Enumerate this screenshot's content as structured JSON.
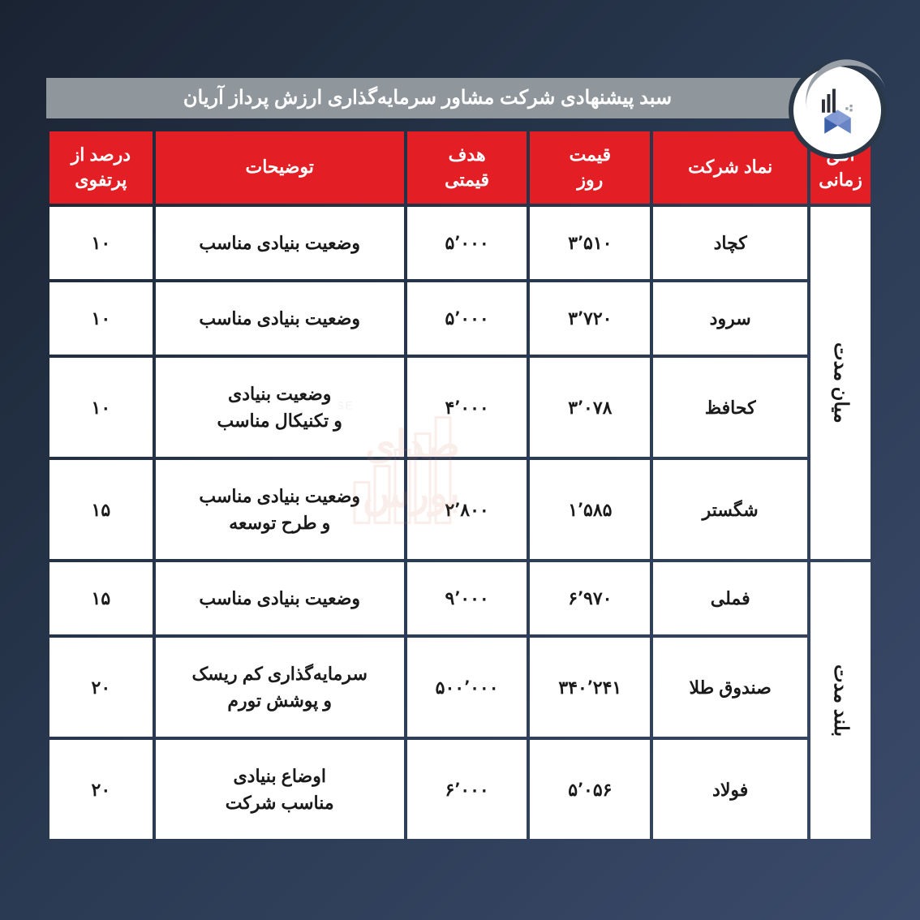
{
  "title": "سبد پیشنهادی شرکت مشاور سرمایه‌گذاری ارزش پرداز آریان",
  "colors": {
    "header_bg": "#e31e24",
    "header_text": "#ffffff",
    "title_bar_bg": "#8f969c",
    "cell_bg": "#ffffff",
    "cell_text": "#1a1a1a",
    "page_bg_start": "#1a2332",
    "page_bg_end": "#3a4a6a",
    "logo_blue": "#3b5fa8",
    "logo_dark": "#2a2f38",
    "watermark": "#d97a5a"
  },
  "columns": {
    "horizon": "افق\nزمانی",
    "symbol": "نماد شرکت",
    "day_price": "قیمت\nروز",
    "target_price": "هدف\nقیمتی",
    "desc": "توضیحات",
    "pct": "درصد از\nپرتفوی"
  },
  "groups": [
    {
      "horizon": "میان مدت",
      "rows": [
        {
          "symbol": "کچاد",
          "day_price": "۳٬۵۱۰",
          "target_price": "۵٬۰۰۰",
          "desc": "وضعیت بنیادی مناسب",
          "pct": "۱۰"
        },
        {
          "symbol": "سرود",
          "day_price": "۳٬۷۲۰",
          "target_price": "۵٬۰۰۰",
          "desc": "وضعیت بنیادی مناسب",
          "pct": "۱۰"
        },
        {
          "symbol": "کحافظ",
          "day_price": "۳٬۰۷۸",
          "target_price": "۴٬۰۰۰",
          "desc": "وضعیت بنیادی\nو تکنیکال مناسب",
          "pct": "۱۰"
        },
        {
          "symbol": "شگستر",
          "day_price": "۱٬۵۸۵",
          "target_price": "۲٬۸۰۰",
          "desc": "وضعیت بنیادی مناسب\nو طرح توسعه",
          "pct": "۱۵"
        }
      ]
    },
    {
      "horizon": "بلند مدت",
      "rows": [
        {
          "symbol": "فملی",
          "day_price": "۶٬۹۷۰",
          "target_price": "۹٬۰۰۰",
          "desc": "وضعیت بنیادی مناسب",
          "pct": "۱۵"
        },
        {
          "symbol": "صندوق طلا",
          "day_price": "۳۴۰٬۲۴۱",
          "target_price": "۵۰۰٬۰۰۰",
          "desc": "سرمایه‌گذاری کم ریسک\nو پوشش تورم",
          "pct": "۲۰"
        },
        {
          "symbol": "فولاد",
          "day_price": "۵٬۰۵۶",
          "target_price": "۶٬۰۰۰",
          "desc": "اوضاع بنیادی\nمناسب شرکت",
          "pct": "۲۰"
        }
      ]
    }
  ]
}
